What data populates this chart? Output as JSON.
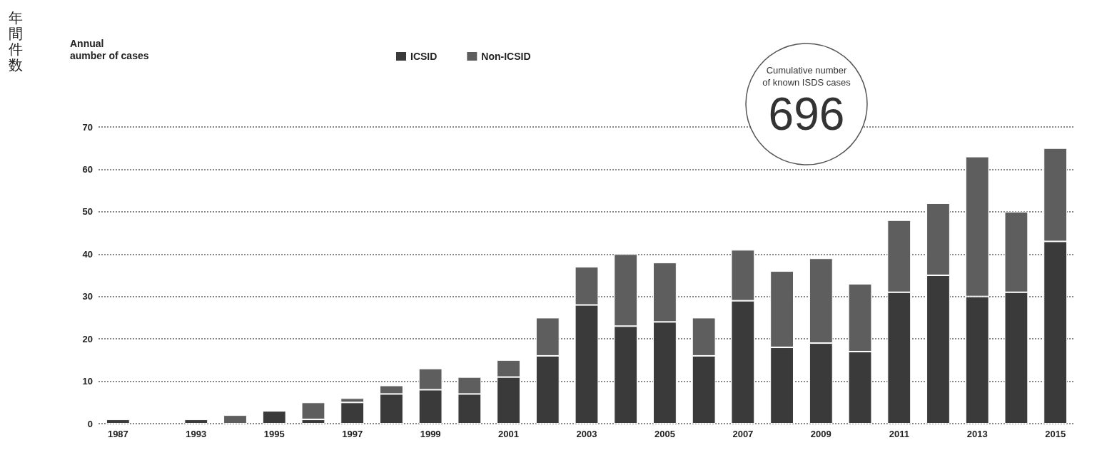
{
  "chart_data": {
    "type": "bar",
    "stacked": true,
    "annotations": [
      "年間件数",
      "Annual\naumber of cases",
      "Cumulative number\nof known ISDS cases",
      "696"
    ],
    "categories": [
      "1987",
      null,
      "1993",
      null,
      "1995",
      null,
      "1997",
      null,
      "1999",
      null,
      "2001",
      null,
      "2003",
      null,
      "2005",
      null,
      "2007",
      null,
      "2009",
      null,
      "2011",
      null,
      "2013",
      null,
      "2015"
    ],
    "series": [
      {
        "name": "ICSID",
        "color": "#3a3a3a",
        "values": [
          1,
          null,
          1,
          0,
          3,
          1,
          5,
          7,
          8,
          7,
          11,
          16,
          28,
          23,
          24,
          16,
          29,
          18,
          19,
          17,
          31,
          35,
          30,
          31,
          43
        ]
      },
      {
        "name": "Non-ICSID",
        "color": "#5e5e5e",
        "values": [
          0,
          null,
          0,
          2,
          0,
          4,
          1,
          2,
          5,
          4,
          4,
          9,
          9,
          17,
          14,
          9,
          12,
          18,
          20,
          16,
          17,
          17,
          33,
          19,
          22
        ]
      }
    ],
    "ylim": [
      0,
      70
    ],
    "yticks": [
      0,
      10,
      20,
      30,
      40,
      50,
      60,
      70
    ],
    "grid": "y",
    "legend": "top"
  }
}
